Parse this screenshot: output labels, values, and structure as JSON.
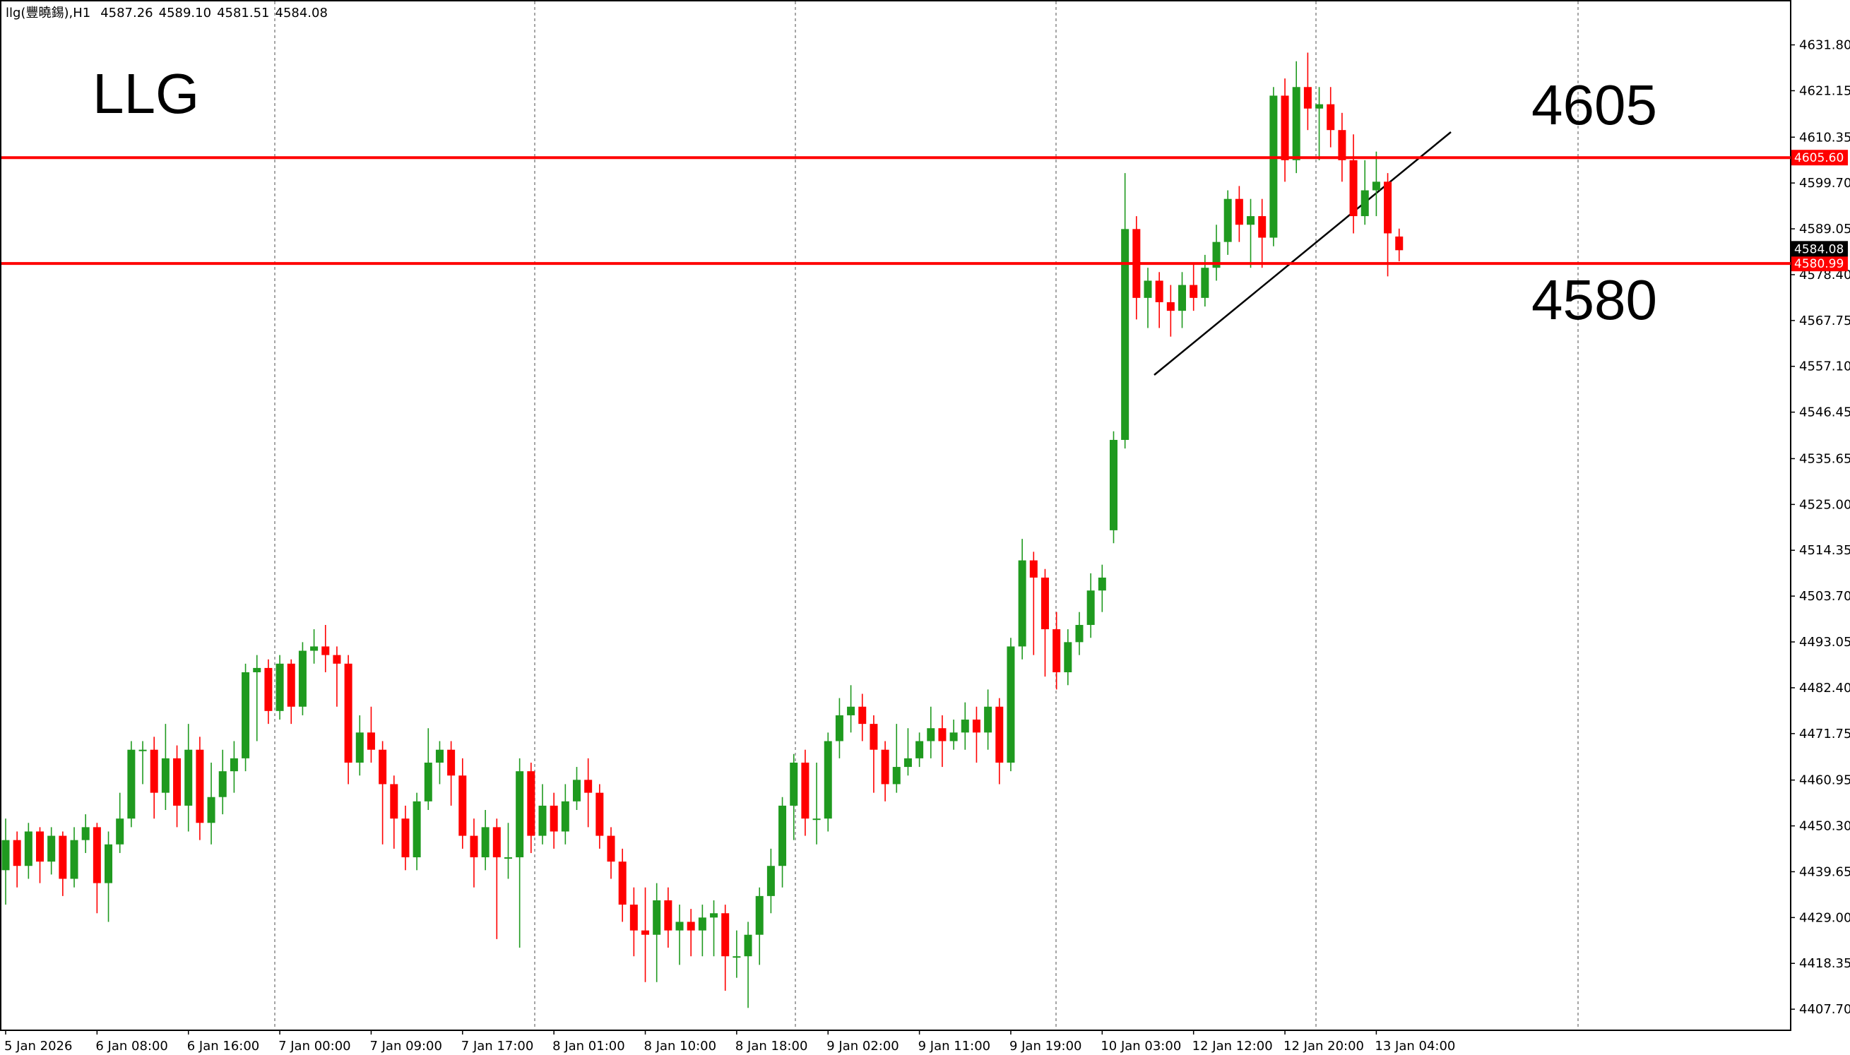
{
  "chart_data": {
    "type": "candlestick",
    "symbol": "llg(豐曉錫),H1",
    "last_bar_labels": {
      "open": "4587.26",
      "high": "4589.10",
      "low": "4581.51",
      "close": "4584.08"
    },
    "annotations": [
      "LLG",
      "4605",
      "4580"
    ],
    "categories": [
      "5 Jan 2026",
      null,
      null,
      null,
      null,
      null,
      null,
      null,
      "6 Jan 08:00",
      null,
      null,
      null,
      null,
      null,
      null,
      null,
      "6 Jan 16:00",
      null,
      null,
      null,
      null,
      null,
      null,
      null,
      "7 Jan 00:00",
      null,
      null,
      null,
      null,
      null,
      null,
      null,
      "7 Jan 09:00",
      null,
      null,
      null,
      null,
      null,
      null,
      null,
      "7 Jan 17:00",
      null,
      null,
      null,
      null,
      null,
      null,
      null,
      "8 Jan 01:00",
      null,
      null,
      null,
      null,
      null,
      null,
      null,
      "8 Jan 10:00",
      null,
      null,
      null,
      null,
      null,
      null,
      null,
      "8 Jan 18:00",
      null,
      null,
      null,
      null,
      null,
      null,
      null,
      "9 Jan 02:00",
      null,
      null,
      null,
      null,
      null,
      null,
      null,
      "9 Jan 11:00",
      null,
      null,
      null,
      null,
      null,
      null,
      null,
      "9 Jan 19:00",
      null,
      null,
      null,
      null,
      null,
      null,
      null,
      "10 Jan 03:00",
      null,
      null,
      null,
      null,
      null,
      null,
      null,
      "12 Jan 12:00",
      null,
      null,
      null,
      null,
      null,
      null,
      null,
      "12 Jan 20:00",
      null,
      null,
      null,
      null,
      null,
      null,
      null,
      "13 Jan 04:00",
      null,
      null
    ],
    "open": [
      4440,
      4447,
      4441,
      4449,
      4442,
      4448,
      4438,
      4447,
      4450,
      4437,
      4446,
      4452,
      4468,
      4468,
      4458,
      4466,
      4455,
      4468,
      4451,
      4457,
      4463,
      4466,
      4486,
      4487,
      4477,
      4488,
      4478,
      4491,
      4492,
      4490,
      4488,
      4465,
      4472,
      4468,
      4460,
      4452,
      4443,
      4456,
      4465,
      4468,
      4462,
      4448,
      4443,
      4450,
      4443,
      4443,
      4463,
      4448,
      4455,
      4449,
      4456,
      4461,
      4458,
      4448,
      4442,
      4432,
      4426,
      4425,
      4433,
      4426,
      4428,
      4426,
      4429,
      4430,
      4420,
      4420,
      4425,
      4434,
      4441,
      4455,
      4465,
      4452,
      4452,
      4470,
      4476,
      4478,
      4474,
      4468,
      4460,
      4464,
      4466,
      4470,
      4473,
      4470,
      4472,
      4475,
      4472,
      4478,
      4465,
      4492,
      4512,
      4508,
      4496,
      4486,
      4493,
      4497,
      4505,
      4519,
      4540,
      4589,
      4573,
      4577,
      4572,
      4570,
      4576,
      4573,
      4580,
      4586,
      4596,
      4590,
      4592,
      4587,
      4620,
      4605,
      4622,
      4617,
      4618,
      4612,
      4605,
      4592,
      4598,
      4600,
      4587.26
    ],
    "high": [
      4452,
      4449,
      4451,
      4450,
      4450,
      4449,
      4450,
      4453,
      4451,
      4449,
      4458,
      4470,
      4470,
      4471,
      4474,
      4469,
      4474,
      4471,
      4465,
      4468,
      4470,
      4488,
      4490,
      4489,
      4490,
      4489,
      4493,
      4496,
      4497,
      4492,
      4490,
      4476,
      4478,
      4470,
      4462,
      4455,
      4458,
      4473,
      4470,
      4470,
      4466,
      4452,
      4454,
      4452,
      4451,
      4466,
      4465,
      4460,
      4458,
      4460,
      4464,
      4466,
      4460,
      4450,
      4445,
      4436,
      4436,
      4437,
      4436,
      4432,
      4431,
      4432,
      4433,
      4432,
      4426,
      4428,
      4436,
      4445,
      4457,
      4467,
      4468,
      4465,
      4472,
      4480,
      4483,
      4481,
      4476,
      4470,
      4474,
      4473,
      4472,
      4478,
      4476,
      4475,
      4479,
      4478,
      4482,
      4480,
      4494,
      4517,
      4514,
      4510,
      4500,
      4496,
      4500,
      4509,
      4511,
      4542,
      4602,
      4592,
      4580,
      4579,
      4576,
      4579,
      4581,
      4583,
      4590,
      4598,
      4599,
      4596,
      4596,
      4622,
      4624,
      4628,
      4630,
      4622,
      4622,
      4616,
      4611,
      4605,
      4607,
      4602,
      4589.1
    ],
    "low": [
      4432,
      4436,
      4438,
      4437,
      4439,
      4434,
      4436,
      4444,
      4430,
      4428,
      4444,
      4450,
      4460,
      4452,
      4454,
      4450,
      4449,
      4447,
      4446,
      4453,
      4458,
      4463,
      4470,
      4474,
      4475,
      4474,
      4476,
      4488,
      4486,
      4478,
      4460,
      4462,
      4465,
      4446,
      4445,
      4440,
      4440,
      4454,
      4460,
      4455,
      4445,
      4436,
      4440,
      4424,
      4438,
      4422,
      4444,
      4446,
      4445,
      4446,
      4454,
      4450,
      4445,
      4438,
      4428,
      4420,
      4414,
      4414,
      4422,
      4418,
      4420,
      4420,
      4420,
      4412,
      4415,
      4408,
      4418,
      4430,
      4436,
      4447,
      4448,
      4446,
      4449,
      4466,
      4472,
      4470,
      4458,
      4456,
      4458,
      4462,
      4464,
      4466,
      4464,
      4468,
      4468,
      4465,
      4468,
      4460,
      4463,
      4489,
      4490,
      4485,
      4482,
      4483,
      4490,
      4494,
      4500,
      4516,
      4538,
      4568,
      4566,
      4566,
      4564,
      4566,
      4570,
      4571,
      4577,
      4583,
      4586,
      4580,
      4580,
      4585,
      4600,
      4602,
      4612,
      4605,
      4608,
      4600,
      4588,
      4590,
      4592,
      4578,
      4581.51
    ],
    "close": [
      4447,
      4441,
      4449,
      4442,
      4448,
      4438,
      4447,
      4450,
      4437,
      4446,
      4452,
      4468,
      4468,
      4458,
      4466,
      4455,
      4468,
      4451,
      4457,
      4463,
      4466,
      4486,
      4487,
      4477,
      4488,
      4478,
      4491,
      4492,
      4490,
      4488,
      4465,
      4472,
      4468,
      4460,
      4452,
      4443,
      4456,
      4465,
      4468,
      4462,
      4448,
      4443,
      4450,
      4443,
      4443,
      4463,
      4448,
      4455,
      4449,
      4456,
      4461,
      4458,
      4448,
      4442,
      4432,
      4426,
      4425,
      4433,
      4426,
      4428,
      4426,
      4429,
      4430,
      4420,
      4420,
      4425,
      4434,
      4441,
      4455,
      4465,
      4452,
      4452,
      4470,
      4476,
      4478,
      4474,
      4468,
      4460,
      4464,
      4466,
      4470,
      4473,
      4470,
      4472,
      4475,
      4472,
      4478,
      4465,
      4492,
      4512,
      4508,
      4496,
      4486,
      4493,
      4497,
      4505,
      4508,
      4540,
      4589,
      4573,
      4577,
      4572,
      4570,
      4576,
      4573,
      4580,
      4586,
      4596,
      4590,
      4592,
      4587,
      4620,
      4605,
      4622,
      4617,
      4618,
      4612,
      4605,
      4592,
      4598,
      4600,
      4588,
      4584.08
    ],
    "up_color": "#1f9a1f",
    "down_color": "#ff0000",
    "hlines": [
      {
        "value": 4605.6,
        "label": "4605.60",
        "color": "#ff0000"
      },
      {
        "value": 4580.99,
        "label": "4580.99",
        "color": "#ff0000"
      }
    ],
    "ylim": [
      4402.8,
      4641.9
    ],
    "yticks": [
      {
        "value": 4631.8,
        "label": "4631.80"
      },
      4621.15,
      4610.35,
      {
        "value": 4599.7,
        "label": "4599.70"
      },
      4589.05,
      {
        "value": 4578.4,
        "label": "4578.40"
      },
      4567.75,
      {
        "value": 4557.1,
        "label": "4557.10"
      },
      4546.45,
      4535.65,
      {
        "value": 4525,
        "label": "4525.00"
      },
      4514.35,
      {
        "value": 4503.7,
        "label": "4503.70"
      },
      4493.05,
      {
        "value": 4482.4,
        "label": "4482.40"
      },
      4471.75,
      4460.95,
      {
        "value": 4450.3,
        "label": "4450.30"
      },
      4439.65,
      {
        "value": 4429,
        "label": "4429.00"
      },
      4418.35,
      {
        "value": 4407.7,
        "label": "4407.70"
      }
    ]
  }
}
